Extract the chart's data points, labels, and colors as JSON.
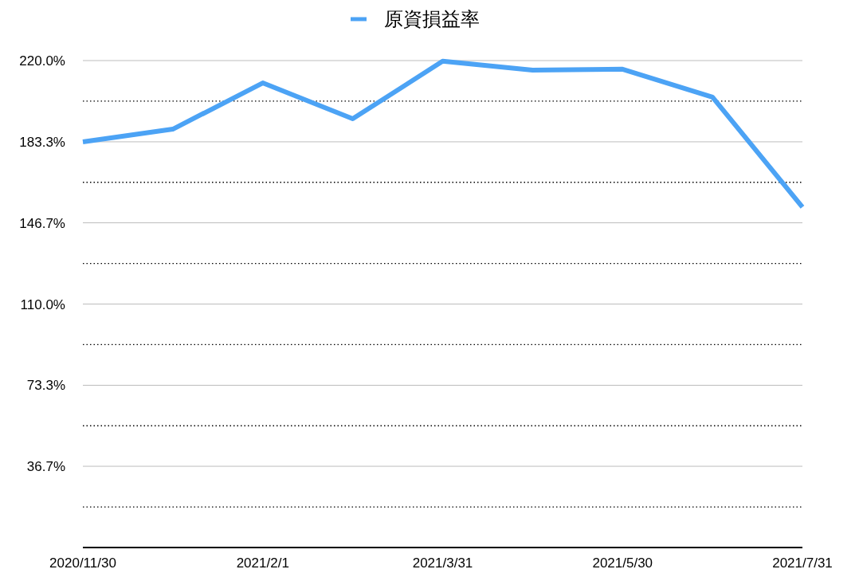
{
  "chart_data": {
    "type": "line",
    "categories": [
      "2020/11/30",
      null,
      "2021/2/1",
      null,
      "2021/3/31",
      null,
      "2021/5/30",
      null,
      "2021/7/31"
    ],
    "series": [
      {
        "name": "原資損益率",
        "color": "#4ca3f5",
        "values": [
          183.3,
          189.0,
          209.9,
          193.7,
          219.7,
          215.7,
          216.1,
          203.5,
          153.8
        ]
      }
    ],
    "ylim": [
      0,
      220
    ],
    "yticks": [
      {
        "value": 18.3,
        "label": null
      },
      {
        "value": 36.7,
        "label": "36.7%"
      },
      {
        "value": 55,
        "label": null
      },
      {
        "value": 73.3,
        "label": "73.3%"
      },
      {
        "value": 91.7,
        "label": null
      },
      {
        "value": 110,
        "label": "110.0%"
      },
      {
        "value": 128.3,
        "label": null
      },
      {
        "value": 146.7,
        "label": "146.7%"
      },
      {
        "value": 165,
        "label": null
      },
      {
        "value": 183.3,
        "label": "183.3%"
      },
      {
        "value": 201.7,
        "label": null
      },
      {
        "value": 220,
        "label": "220.0%"
      }
    ],
    "grid": true,
    "legend": "top",
    "marker": "none",
    "line_style": "solid"
  }
}
